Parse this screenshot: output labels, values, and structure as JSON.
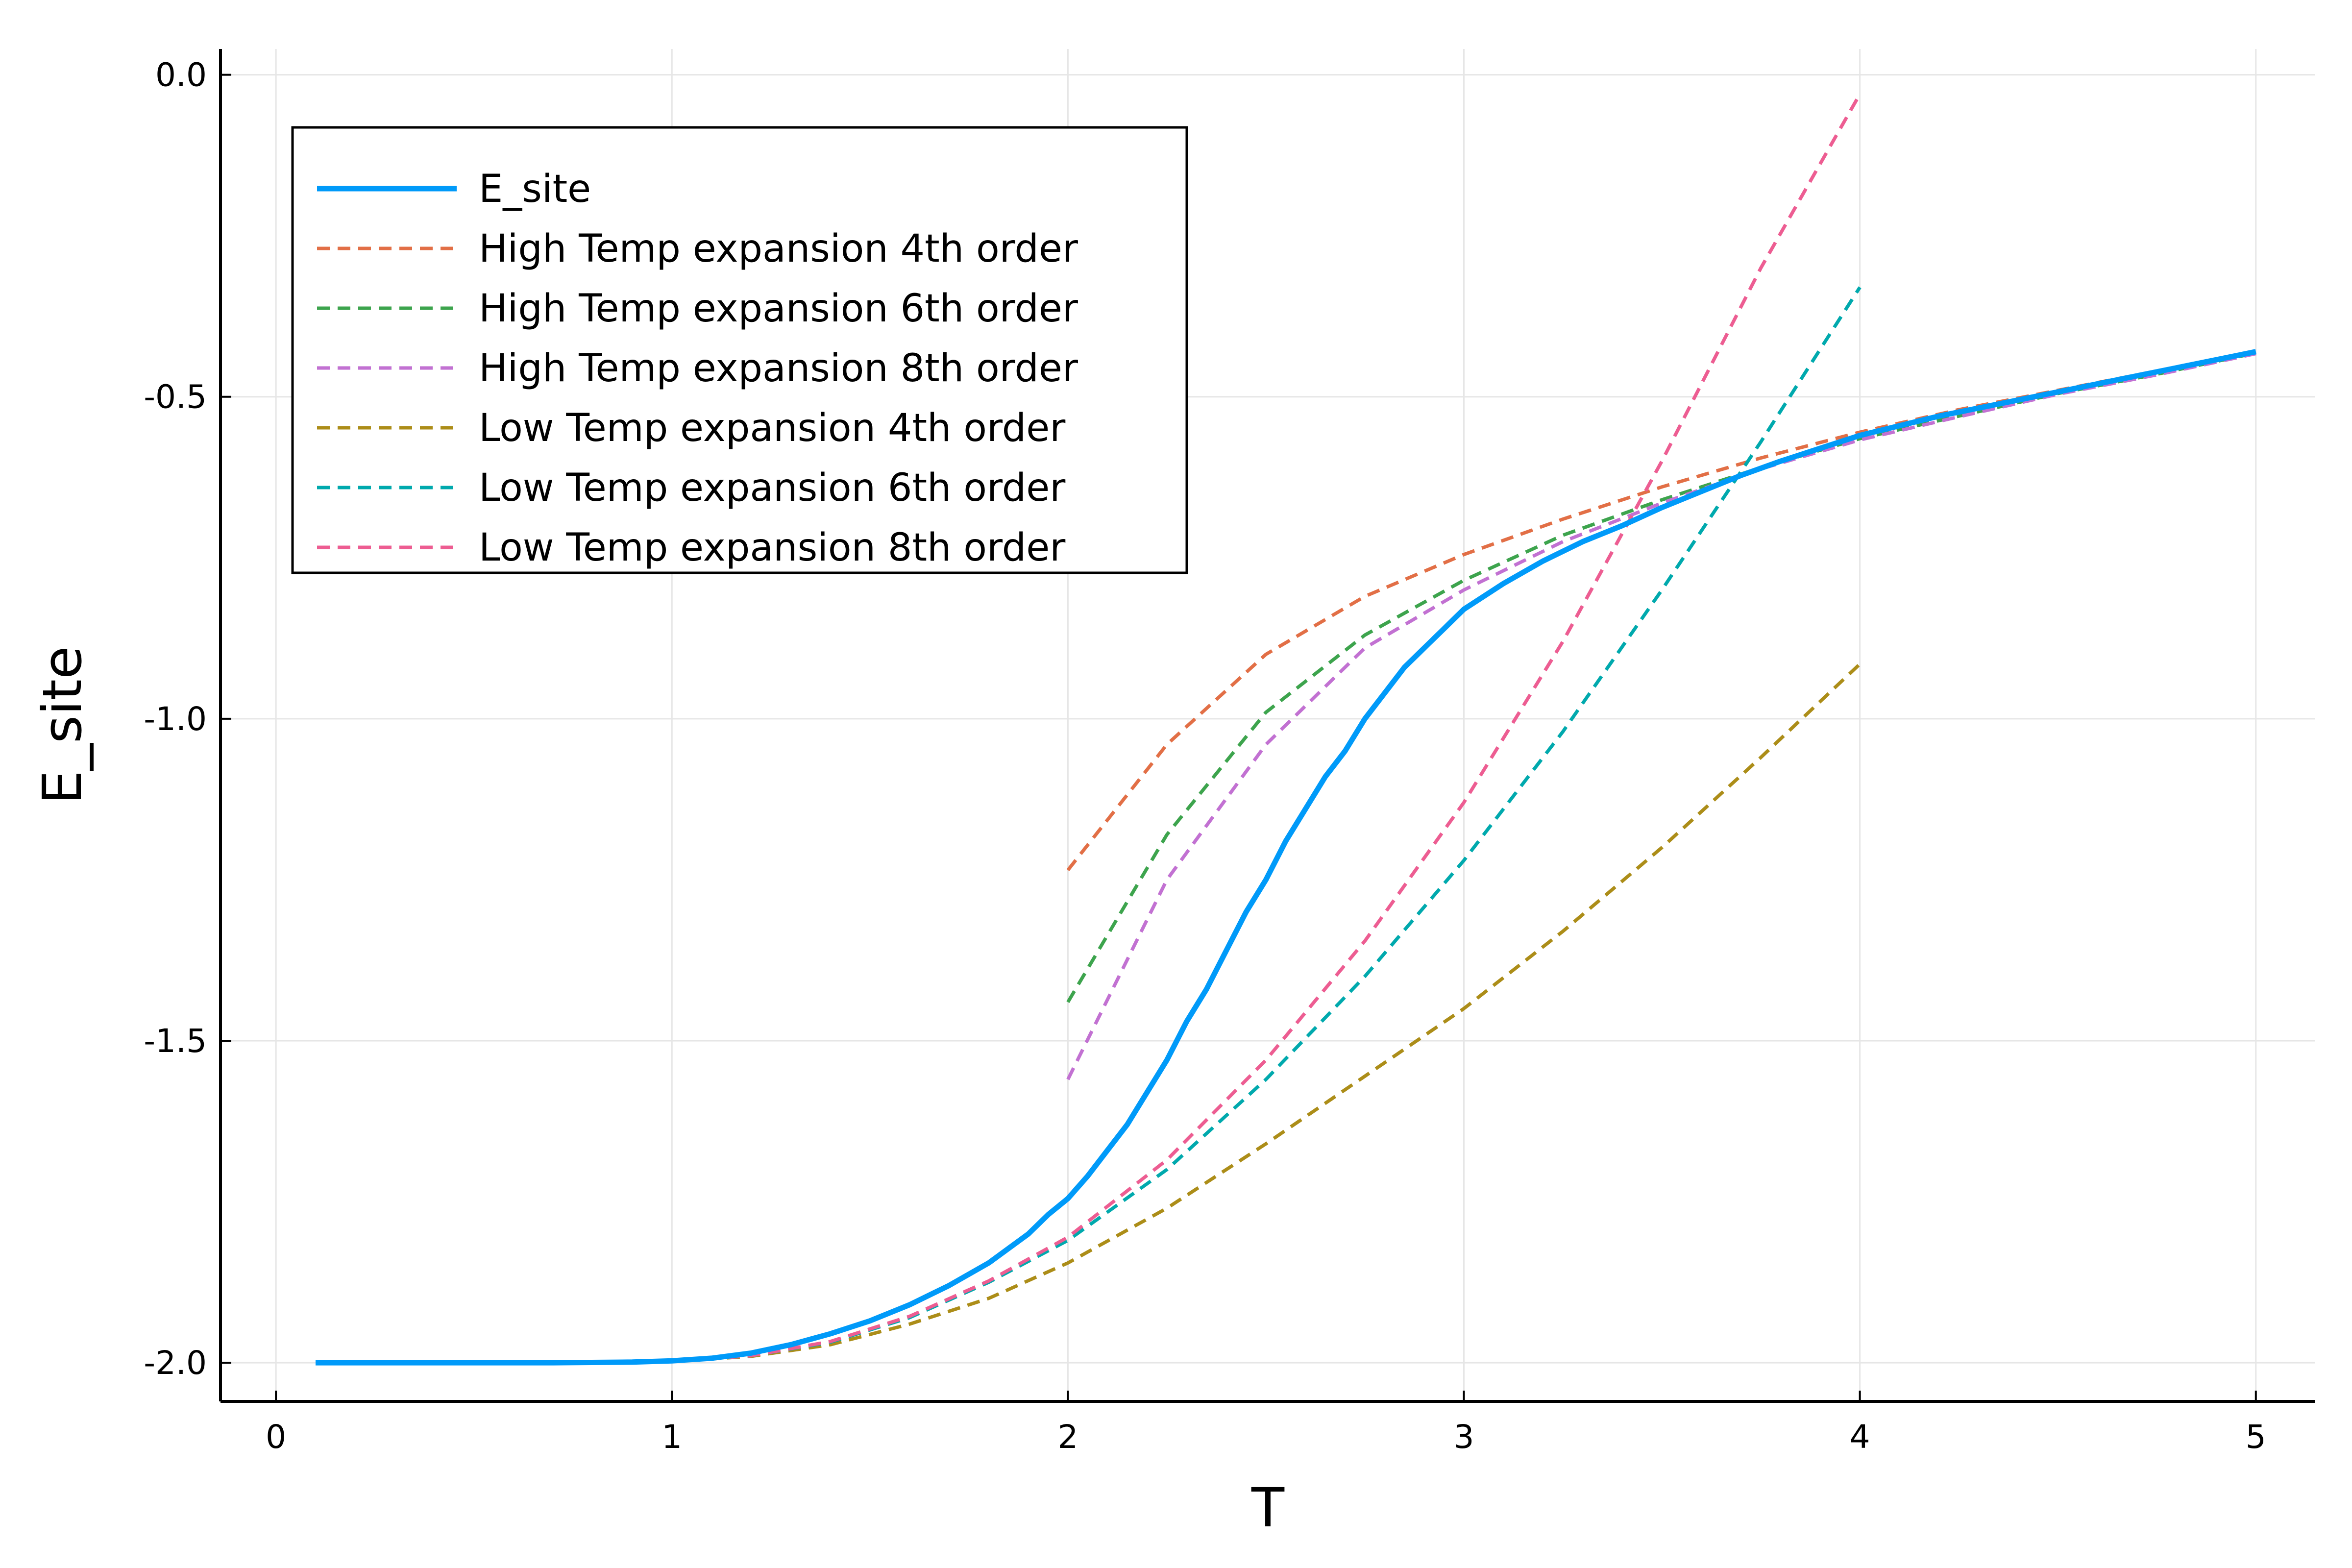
{
  "chart_data": {
    "type": "line",
    "title": "",
    "xlabel": "T",
    "ylabel": "E_site",
    "xlim": [
      -0.14,
      5.15
    ],
    "ylim": [
      -2.06,
      0.04
    ],
    "xticks": [
      0,
      1,
      2,
      3,
      4,
      5
    ],
    "xtick_labels": [
      "0",
      "1",
      "2",
      "3",
      "4",
      "5"
    ],
    "yticks": [
      -2.0,
      -1.5,
      -1.0,
      -0.5,
      0.0
    ],
    "ytick_labels": [
      "-2.0",
      "-1.5",
      "-1.0",
      "-0.5",
      "0.0"
    ],
    "grid": true,
    "legend_position": "top-left",
    "series": [
      {
        "name": "E_site",
        "color": "#009af9",
        "style": "solid",
        "x": [
          0.1,
          0.3,
          0.5,
          0.7,
          0.9,
          1.0,
          1.1,
          1.2,
          1.3,
          1.4,
          1.5,
          1.6,
          1.7,
          1.8,
          1.9,
          1.95,
          2.0,
          2.05,
          2.1,
          2.15,
          2.2,
          2.25,
          2.3,
          2.35,
          2.4,
          2.45,
          2.5,
          2.55,
          2.6,
          2.65,
          2.7,
          2.75,
          2.8,
          2.85,
          2.9,
          2.95,
          3.0,
          3.1,
          3.2,
          3.3,
          3.4,
          3.5,
          3.6,
          3.7,
          3.8,
          3.9,
          4.0,
          4.2,
          4.4,
          4.6,
          4.8,
          5.0
        ],
        "y": [
          -2.0,
          -2.0,
          -2.0,
          -2.0,
          -1.999,
          -1.997,
          -1.993,
          -1.985,
          -1.972,
          -1.955,
          -1.935,
          -1.91,
          -1.88,
          -1.845,
          -1.8,
          -1.77,
          -1.745,
          -1.71,
          -1.67,
          -1.63,
          -1.58,
          -1.53,
          -1.47,
          -1.42,
          -1.36,
          -1.3,
          -1.25,
          -1.19,
          -1.14,
          -1.09,
          -1.05,
          -1.0,
          -0.96,
          -0.92,
          -0.89,
          -0.86,
          -0.83,
          -0.79,
          -0.755,
          -0.725,
          -0.7,
          -0.672,
          -0.647,
          -0.622,
          -0.6,
          -0.58,
          -0.56,
          -0.53,
          -0.505,
          -0.48,
          -0.455,
          -0.43
        ]
      },
      {
        "name": "High Temp expansion 4th order",
        "color": "#e26f46",
        "style": "dashed",
        "x": [
          2.0,
          2.25,
          2.5,
          2.75,
          3.0,
          3.25,
          3.5,
          3.75,
          4.0,
          4.25,
          4.5,
          4.75,
          5.0
        ],
        "y": [
          -1.235,
          -1.04,
          -0.9,
          -0.81,
          -0.745,
          -0.69,
          -0.64,
          -0.595,
          -0.555,
          -0.52,
          -0.49,
          -0.46,
          -0.43
        ]
      },
      {
        "name": "High Temp expansion 6th order",
        "color": "#3da44d",
        "style": "dashed",
        "x": [
          2.0,
          2.25,
          2.5,
          2.75,
          3.0,
          3.25,
          3.5,
          3.75,
          4.0,
          4.25,
          4.5,
          4.75,
          5.0
        ],
        "y": [
          -1.44,
          -1.18,
          -0.99,
          -0.87,
          -0.785,
          -0.715,
          -0.66,
          -0.61,
          -0.565,
          -0.53,
          -0.495,
          -0.465,
          -0.432
        ]
      },
      {
        "name": "High Temp expansion 8th order",
        "color": "#c271d2",
        "style": "dashed",
        "x": [
          2.0,
          2.25,
          2.5,
          2.75,
          3.0,
          3.25,
          3.5,
          3.75,
          4.0,
          4.25,
          4.5,
          4.75,
          5.0
        ],
        "y": [
          -1.56,
          -1.25,
          -1.04,
          -0.89,
          -0.8,
          -0.725,
          -0.665,
          -0.612,
          -0.567,
          -0.531,
          -0.496,
          -0.466,
          -0.433
        ]
      },
      {
        "name": "Low Temp expansion 4th order",
        "color": "#ac8d18",
        "style": "dashed",
        "x": [
          0.1,
          0.5,
          1.0,
          1.2,
          1.4,
          1.6,
          1.8,
          2.0,
          2.25,
          2.5,
          2.75,
          3.0,
          3.25,
          3.5,
          3.75,
          4.0
        ],
        "y": [
          -2.0,
          -2.0,
          -1.998,
          -1.99,
          -1.972,
          -1.94,
          -1.9,
          -1.845,
          -1.76,
          -1.66,
          -1.555,
          -1.45,
          -1.33,
          -1.2,
          -1.06,
          -0.915
        ]
      },
      {
        "name": "Low Temp expansion 6th order",
        "color": "#00a9ad",
        "style": "dashed",
        "x": [
          0.1,
          0.5,
          1.0,
          1.2,
          1.4,
          1.6,
          1.8,
          2.0,
          2.25,
          2.5,
          2.75,
          3.0,
          3.25,
          3.5,
          3.75,
          4.0
        ],
        "y": [
          -2.0,
          -2.0,
          -1.998,
          -1.989,
          -1.968,
          -1.93,
          -1.875,
          -1.81,
          -1.7,
          -1.56,
          -1.4,
          -1.22,
          -1.02,
          -0.8,
          -0.57,
          -0.33
        ]
      },
      {
        "name": "Low Temp expansion 8th order",
        "color": "#ed5d92",
        "style": "dashed",
        "x": [
          0.1,
          0.5,
          1.0,
          1.2,
          1.4,
          1.6,
          1.8,
          2.0,
          2.25,
          2.5,
          2.75,
          3.0,
          3.25,
          3.5,
          3.75,
          4.0
        ],
        "y": [
          -2.0,
          -2.0,
          -1.998,
          -1.989,
          -1.967,
          -1.928,
          -1.873,
          -1.805,
          -1.685,
          -1.53,
          -1.345,
          -1.13,
          -0.88,
          -0.6,
          -0.3,
          -0.03
        ]
      }
    ]
  }
}
